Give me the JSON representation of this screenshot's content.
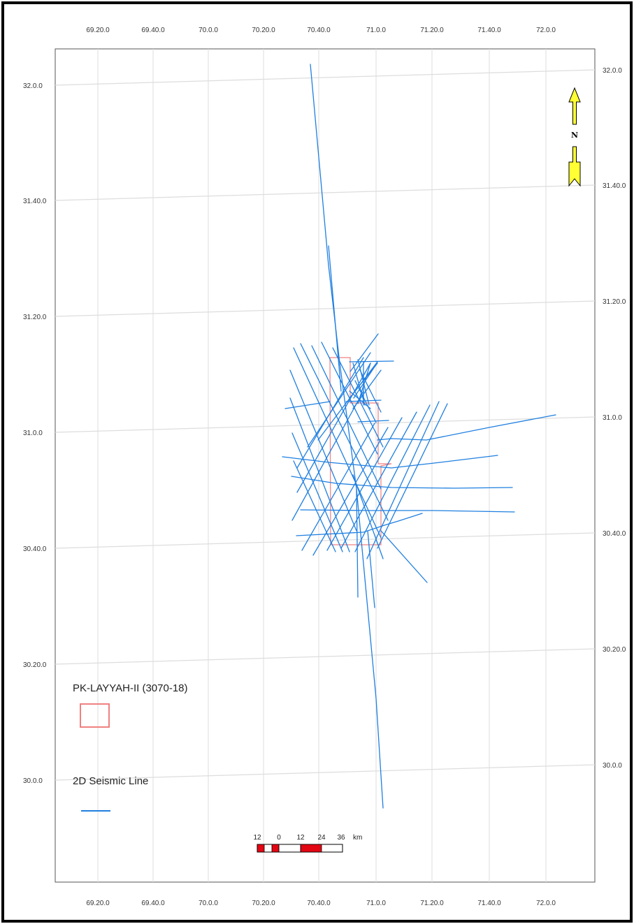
{
  "map": {
    "lon_ticks": [
      "69.20.0",
      "69.40.0",
      "70.0.0",
      "70.20.0",
      "70.40.0",
      "71.0.0",
      "71.20.0",
      "71.40.0",
      "72.0.0"
    ],
    "lat_ticks": [
      "32.0.0",
      "31.40.0",
      "31.20.0",
      "31.0.0",
      "30.40.0",
      "30.20.0",
      "30.0.0"
    ],
    "grid": true,
    "colors": {
      "seismic": "#1f7fe0",
      "block": "#f08080",
      "grid": "#dddddd",
      "frame": "#000000",
      "north_arrow": "#ffff33",
      "scale_red": "#e30613"
    }
  },
  "north_arrow": {
    "label": "N"
  },
  "legend": {
    "block_label": "PK-LAYYAH-II (3070-18)",
    "seismic_label": "2D Seismic Line"
  },
  "scale_bar": {
    "labels": [
      "12",
      "0",
      "12",
      "24",
      "36"
    ],
    "unit": "km"
  }
}
